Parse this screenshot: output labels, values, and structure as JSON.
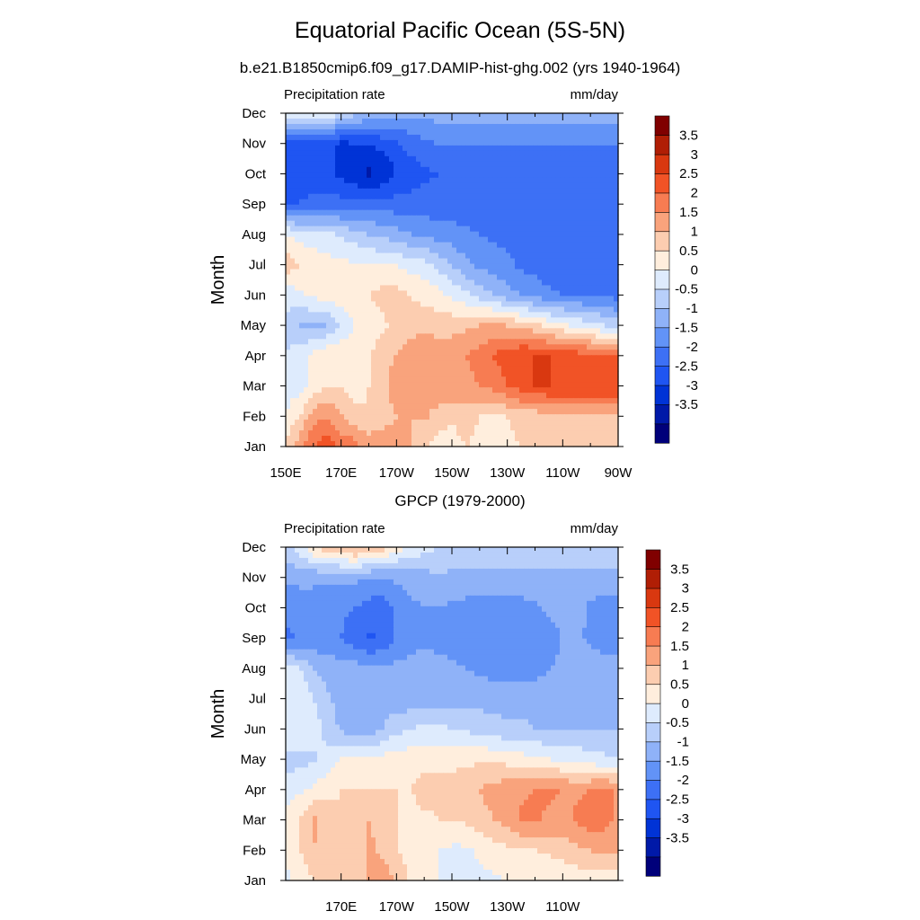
{
  "page": {
    "main_title": "Equatorial Pacific Ocean (5S-5N)",
    "subtitle": "b.e21.B1850cmip6.f09_g17.DAMIP-hist-ghg.002 (yrs 1940-1964)"
  },
  "chart_data": [
    {
      "type": "heatmap",
      "title": "",
      "left_label": "Precipitation rate",
      "right_label": "mm/day",
      "ylabel": "Month",
      "xlabel": "",
      "x_ticks": [
        "150E",
        "170E",
        "170W",
        "150W",
        "130W",
        "110W",
        "90W"
      ],
      "y_ticks": [
        "Jan",
        "Feb",
        "Mar",
        "Apr",
        "May",
        "Jun",
        "Jul",
        "Aug",
        "Sep",
        "Oct",
        "Nov",
        "Dec"
      ],
      "xlim": [
        150,
        270
      ],
      "ylim": [
        1,
        12
      ],
      "colorbar_levels": [
        "3.5",
        "3",
        "2.5",
        "2",
        "1.5",
        "1",
        "0.5",
        "0",
        "-0.5",
        "-1",
        "-1.5",
        "-2",
        "-2.5",
        "-3",
        "-3.5"
      ],
      "colors": [
        "#00007a",
        "#0019a8",
        "#0033d6",
        "#1f55f2",
        "#3d70f5",
        "#6293f7",
        "#8fb2f8",
        "#b8cffa",
        "#deebfd",
        "#ffeedd",
        "#fccdb0",
        "#f9a37c",
        "#f77c52",
        "#f15326",
        "#d93810",
        "#b01e05",
        "#800000"
      ],
      "grid": [
        [
          1.2,
          1.8,
          2.5,
          2.8,
          2.4,
          2.2,
          1.8,
          2.0,
          1.8,
          1.5,
          1.0,
          0.8,
          0.9,
          1.0,
          0.9,
          1.0,
          0.9,
          1.0,
          1.0,
          1.0,
          1.0,
          1.0,
          1.0,
          1.0,
          1.0
        ],
        [
          0.5,
          1.0,
          1.8,
          2.0,
          1.5,
          1.2,
          1.0,
          1.2,
          1.5,
          1.5,
          1.6,
          1.2,
          1.0,
          1.2,
          1.0,
          1.0,
          1.0,
          1.2,
          1.2,
          1.5,
          1.5,
          1.5,
          1.5,
          1.4,
          1.5
        ],
        [
          0.3,
          0.3,
          0.6,
          1.0,
          1.0,
          0.8,
          1.0,
          1.3,
          1.8,
          2.0,
          2.0,
          2.0,
          2.0,
          1.8,
          2.0,
          2.2,
          2.5,
          2.8,
          3.0,
          3.0,
          3.0,
          3.0,
          3.0,
          3.0,
          3.0
        ],
        [
          0.0,
          0.3,
          0.6,
          0.9,
          0.9,
          0.8,
          0.9,
          1.3,
          1.5,
          1.8,
          2.0,
          1.8,
          1.8,
          2.0,
          2.2,
          2.5,
          2.8,
          3.0,
          3.0,
          3.0,
          2.8,
          2.8,
          2.6,
          2.5,
          2.5
        ],
        [
          -0.2,
          -0.5,
          -0.6,
          -0.5,
          0.1,
          0.5,
          0.7,
          0.9,
          1.2,
          1.3,
          1.3,
          1.3,
          1.3,
          1.4,
          1.5,
          1.6,
          1.5,
          1.3,
          1.1,
          0.8,
          0.6,
          0.4,
          0.2,
          0.0,
          -0.3
        ],
        [
          0.2,
          0.4,
          0.6,
          0.8,
          0.8,
          0.9,
          1.0,
          1.2,
          1.2,
          1.0,
          0.8,
          0.7,
          0.4,
          0.1,
          -0.2,
          -0.5,
          -0.8,
          -1.0,
          -1.2,
          -1.4,
          -1.5,
          -1.5,
          -1.6,
          -1.6,
          -1.7
        ],
        [
          1.3,
          1.0,
          0.8,
          0.7,
          0.6,
          0.6,
          0.5,
          0.5,
          0.5,
          0.3,
          0.2,
          -0.2,
          -0.5,
          -0.9,
          -1.1,
          -1.3,
          -1.4,
          -1.6,
          -1.7,
          -1.8,
          -1.8,
          -1.8,
          -1.8,
          -1.8,
          -1.8
        ],
        [
          0.5,
          0.3,
          0.2,
          0.1,
          -0.1,
          -0.3,
          -0.5,
          -0.6,
          -0.8,
          -1.0,
          -1.1,
          -1.2,
          -1.3,
          -1.4,
          -1.5,
          -1.6,
          -1.6,
          -1.6,
          -1.7,
          -1.7,
          -1.7,
          -1.7,
          -1.7,
          -1.7,
          -1.7
        ],
        [
          -2.0,
          -2.0,
          -1.8,
          -1.7,
          -1.8,
          -1.8,
          -1.8,
          -1.8,
          -1.8,
          -1.8,
          -1.8,
          -1.8,
          -1.8,
          -1.8,
          -1.8,
          -1.8,
          -1.8,
          -1.8,
          -1.8,
          -1.8,
          -1.8,
          -1.8,
          -1.8,
          -1.8,
          -1.8
        ],
        [
          -2.3,
          -2.3,
          -2.5,
          -2.4,
          -2.6,
          -2.9,
          -3.1,
          -2.9,
          -2.5,
          -2.3,
          -2.1,
          -2.0,
          -1.9,
          -1.9,
          -1.8,
          -1.8,
          -1.8,
          -1.8,
          -1.8,
          -1.8,
          -1.8,
          -1.8,
          -1.8,
          -1.8,
          -1.8
        ],
        [
          -2.1,
          -2.2,
          -2.3,
          -2.4,
          -2.6,
          -2.5,
          -2.5,
          -2.3,
          -2.1,
          -1.8,
          -1.6,
          -1.5,
          -1.5,
          -1.5,
          -1.5,
          -1.5,
          -1.5,
          -1.5,
          -1.5,
          -1.5,
          -1.5,
          -1.5,
          -1.5,
          -1.5,
          -1.5
        ],
        [
          0.3,
          0.6,
          0.7,
          0.5,
          0.1,
          -0.3,
          -0.6,
          -0.7,
          -0.8,
          -0.9,
          -0.9,
          -0.8,
          -0.8,
          -0.8,
          -0.8,
          -0.7,
          -0.7,
          -0.7,
          -0.7,
          -0.7,
          -0.7,
          -0.7,
          -0.7,
          -0.7,
          -0.7
        ]
      ]
    },
    {
      "type": "heatmap",
      "title": "GPCP (1979-2000)",
      "left_label": "Precipitation rate",
      "right_label": "mm/day",
      "ylabel": "Month",
      "xlabel": "",
      "x_ticks": [
        "170E",
        "170W",
        "150W",
        "130W",
        "110W"
      ],
      "y_ticks": [
        "Jan",
        "Feb",
        "Mar",
        "Apr",
        "May",
        "Jun",
        "Jul",
        "Aug",
        "Sep",
        "Oct",
        "Nov",
        "Dec"
      ],
      "xlim": [
        150,
        270
      ],
      "ylim": [
        1,
        12
      ],
      "colorbar_levels": [
        "3.5",
        "3",
        "2.5",
        "2",
        "1.5",
        "1",
        "0.5",
        "0",
        "-0.5",
        "-1",
        "-1.5",
        "-2",
        "-2.5",
        "-3",
        "-3.5"
      ],
      "colors": [
        "#00007a",
        "#0019a8",
        "#0033d6",
        "#1f55f2",
        "#3d70f5",
        "#6293f7",
        "#8fb2f8",
        "#b8cffa",
        "#deebfd",
        "#ffeedd",
        "#fccdb0",
        "#f9a37c",
        "#f77c52",
        "#f15326",
        "#d93810",
        "#b01e05",
        "#800000"
      ],
      "grid": [
        [
          0.4,
          0.6,
          1.0,
          1.1,
          1.1,
          1.3,
          1.6,
          1.8,
          1.5,
          0.9,
          0.6,
          0.5,
          0.4,
          0.4,
          0.4,
          0.4,
          0.5,
          0.5,
          0.6,
          0.6,
          0.6,
          0.7,
          0.7,
          0.7,
          0.7
        ],
        [
          0.6,
          1.0,
          1.5,
          1.3,
          1.1,
          1.2,
          1.6,
          1.4,
          1.0,
          0.7,
          0.7,
          0.5,
          0.4,
          0.4,
          0.6,
          0.8,
          0.9,
          1.0,
          1.0,
          1.1,
          1.2,
          1.4,
          1.5,
          1.6,
          1.6
        ],
        [
          0.7,
          1.0,
          1.6,
          1.3,
          1.1,
          1.2,
          1.5,
          1.3,
          1.0,
          0.8,
          0.9,
          1.0,
          1.0,
          1.1,
          1.3,
          1.5,
          1.7,
          2.1,
          2.1,
          1.9,
          1.8,
          2.1,
          2.3,
          2.2,
          1.9
        ],
        [
          0.2,
          0.4,
          0.6,
          0.8,
          1.0,
          1.0,
          1.0,
          1.0,
          1.0,
          1.0,
          1.2,
          1.1,
          1.1,
          1.3,
          1.5,
          1.7,
          1.8,
          1.9,
          2.0,
          2.1,
          2.0,
          1.9,
          2.0,
          2.1,
          1.9
        ],
        [
          -0.2,
          -0.2,
          -0.1,
          0.2,
          0.5,
          0.6,
          0.6,
          0.7,
          0.8,
          0.8,
          0.8,
          0.9,
          0.9,
          0.9,
          0.9,
          0.9,
          0.8,
          0.7,
          0.6,
          0.5,
          0.4,
          0.3,
          0.2,
          0.1,
          0.0
        ],
        [
          0.5,
          0.5,
          0.3,
          -0.2,
          -0.6,
          -0.8,
          -0.8,
          -0.5,
          -0.2,
          0.0,
          0.1,
          0.1,
          0.0,
          -0.1,
          -0.2,
          -0.3,
          -0.4,
          -0.4,
          -0.5,
          -0.5,
          -0.5,
          -0.5,
          -0.5,
          -0.5,
          -0.5
        ],
        [
          0.5,
          0.4,
          0.0,
          -0.4,
          -0.7,
          -0.7,
          -0.7,
          -0.7,
          -0.8,
          -0.8,
          -0.7,
          -0.7,
          -0.7,
          -0.7,
          -0.7,
          -0.7,
          -0.7,
          -0.7,
          -0.7,
          -0.7,
          -0.7,
          -0.7,
          -0.7,
          -0.7,
          -0.7
        ],
        [
          0.3,
          0.0,
          -0.5,
          -0.7,
          -0.8,
          -0.8,
          -0.9,
          -0.9,
          -0.9,
          -0.8,
          -0.8,
          -0.8,
          -0.9,
          -1.0,
          -1.1,
          -1.2,
          -1.3,
          -1.3,
          -1.2,
          -1.0,
          -0.9,
          -0.8,
          -0.7,
          -0.7,
          -0.7
        ],
        [
          -1.6,
          -1.5,
          -1.4,
          -1.3,
          -1.5,
          -1.8,
          -2.1,
          -1.9,
          -1.4,
          -1.2,
          -1.1,
          -1.2,
          -1.3,
          -1.4,
          -1.4,
          -1.4,
          -1.4,
          -1.4,
          -1.4,
          -1.2,
          -1.0,
          -0.9,
          -1.1,
          -1.3,
          -1.3
        ],
        [
          -1.3,
          -1.2,
          -1.2,
          -1.3,
          -1.4,
          -1.5,
          -1.7,
          -1.8,
          -1.4,
          -1.1,
          -1.0,
          -1.0,
          -1.1,
          -1.2,
          -1.3,
          -1.3,
          -1.3,
          -1.2,
          -1.1,
          -0.9,
          -0.8,
          -0.8,
          -1.1,
          -1.3,
          -1.3
        ],
        [
          -0.9,
          -0.9,
          -0.9,
          -0.9,
          -0.9,
          -0.9,
          -1.0,
          -1.0,
          -0.9,
          -0.8,
          -0.7,
          -0.6,
          -0.6,
          -0.6,
          -0.6,
          -0.6,
          -0.6,
          -0.6,
          -0.6,
          -0.6,
          -0.6,
          -0.6,
          -0.6,
          -0.6,
          -0.6
        ],
        [
          -0.2,
          0.3,
          1.0,
          1.3,
          1.5,
          1.7,
          1.5,
          1.2,
          0.8,
          0.4,
          0.2,
          0.0,
          -0.2,
          -0.3,
          -0.3,
          -0.3,
          -0.3,
          -0.3,
          -0.3,
          -0.3,
          -0.3,
          -0.3,
          -0.3,
          -0.3,
          -0.3
        ]
      ]
    }
  ]
}
